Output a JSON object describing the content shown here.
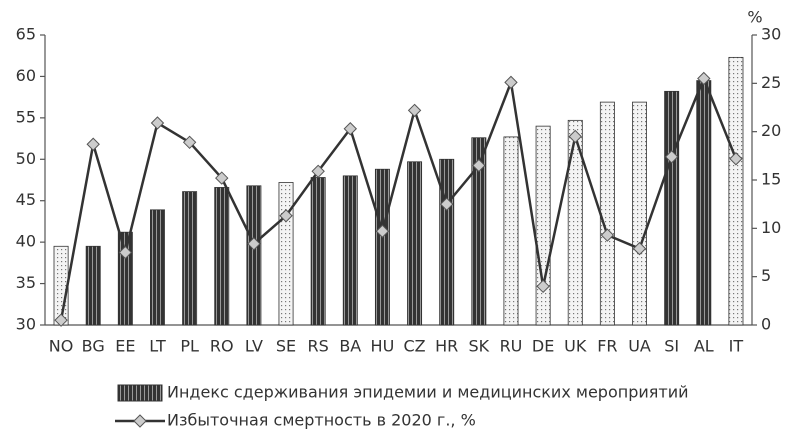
{
  "chart_data": {
    "type": "bar_line",
    "categories": [
      "NO",
      "BG",
      "EE",
      "LT",
      "PL",
      "RO",
      "LV",
      "SE",
      "RS",
      "BA",
      "HU",
      "CZ",
      "HR",
      "SK",
      "RU",
      "DE",
      "UK",
      "FR",
      "UA",
      "SI",
      "AL",
      "IT"
    ],
    "series": [
      {
        "name": "Индекс сдерживания эпидемии и медицинских мероприятий",
        "type": "bar",
        "axis": "y",
        "color": "#333333",
        "bar_colors": [
          "#eeeeee",
          "#333333",
          "#333333",
          "#333333",
          "#333333",
          "#333333",
          "#333333",
          "#eeeeee",
          "#333333",
          "#333333",
          "#333333",
          "#333333",
          "#333333",
          "#333333",
          "#eeeeee",
          "#eeeeee",
          "#eeeeee",
          "#eeeeee",
          "#eeeeee",
          "#333333",
          "#333333",
          "#eeeeee"
        ],
        "values": [
          39.5,
          39.5,
          41.2,
          43.9,
          46.1,
          46.6,
          46.8,
          47.2,
          47.8,
          48.0,
          48.8,
          49.7,
          50.0,
          52.6,
          52.7,
          54.0,
          54.7,
          56.9,
          56.9,
          58.2,
          59.5,
          62.3
        ]
      },
      {
        "name": "Избыточная смертность в 2020 г., %",
        "type": "line",
        "axis": "y2",
        "color": "#333333",
        "marker_color": "#cccccc",
        "values": [
          0.5,
          18.7,
          7.5,
          20.9,
          18.9,
          15.2,
          8.4,
          11.3,
          15.9,
          20.3,
          9.7,
          22.2,
          12.5,
          16.5,
          25.1,
          4.0,
          19.5,
          9.3,
          7.9,
          17.4,
          25.5,
          17.2
        ]
      }
    ],
    "ylim": [
      30,
      65
    ],
    "yticks": [
      30,
      35,
      40,
      45,
      50,
      55,
      60,
      65
    ],
    "y2lim": [
      0,
      30
    ],
    "y2ticks": [
      0,
      5,
      10,
      15,
      20,
      25,
      30
    ],
    "y2_unit_label": "%",
    "legend": "bottom"
  }
}
